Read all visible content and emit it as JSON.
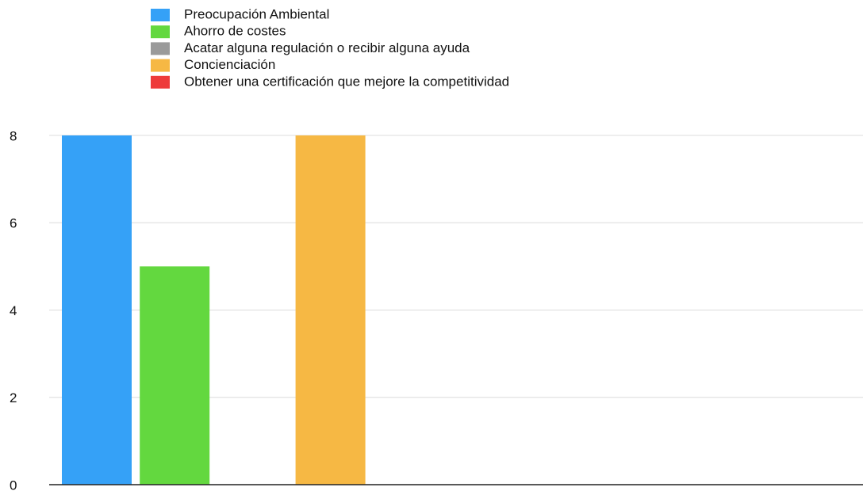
{
  "chart_data": {
    "type": "bar",
    "categories": [
      null
    ],
    "series": [
      {
        "name": "Preocupación Ambiental",
        "color": "#35a1f7",
        "values": [
          8
        ]
      },
      {
        "name": "Ahorro de costes",
        "color": "#63d83f",
        "values": [
          5
        ]
      },
      {
        "name": "Acatar alguna regulación o recibir alguna ayuda",
        "color": "#9a9a9a",
        "values": [
          0
        ]
      },
      {
        "name": "Concienciación",
        "color": "#f6b844",
        "values": [
          8
        ]
      },
      {
        "name": "Obtener una certificación que mejore la competitividad",
        "color": "#ee3b3b",
        "values": [
          0
        ]
      }
    ],
    "ylim": [
      0,
      8
    ],
    "yticks": [
      0,
      2,
      4,
      6,
      8
    ],
    "grid": true,
    "legend": "top"
  }
}
